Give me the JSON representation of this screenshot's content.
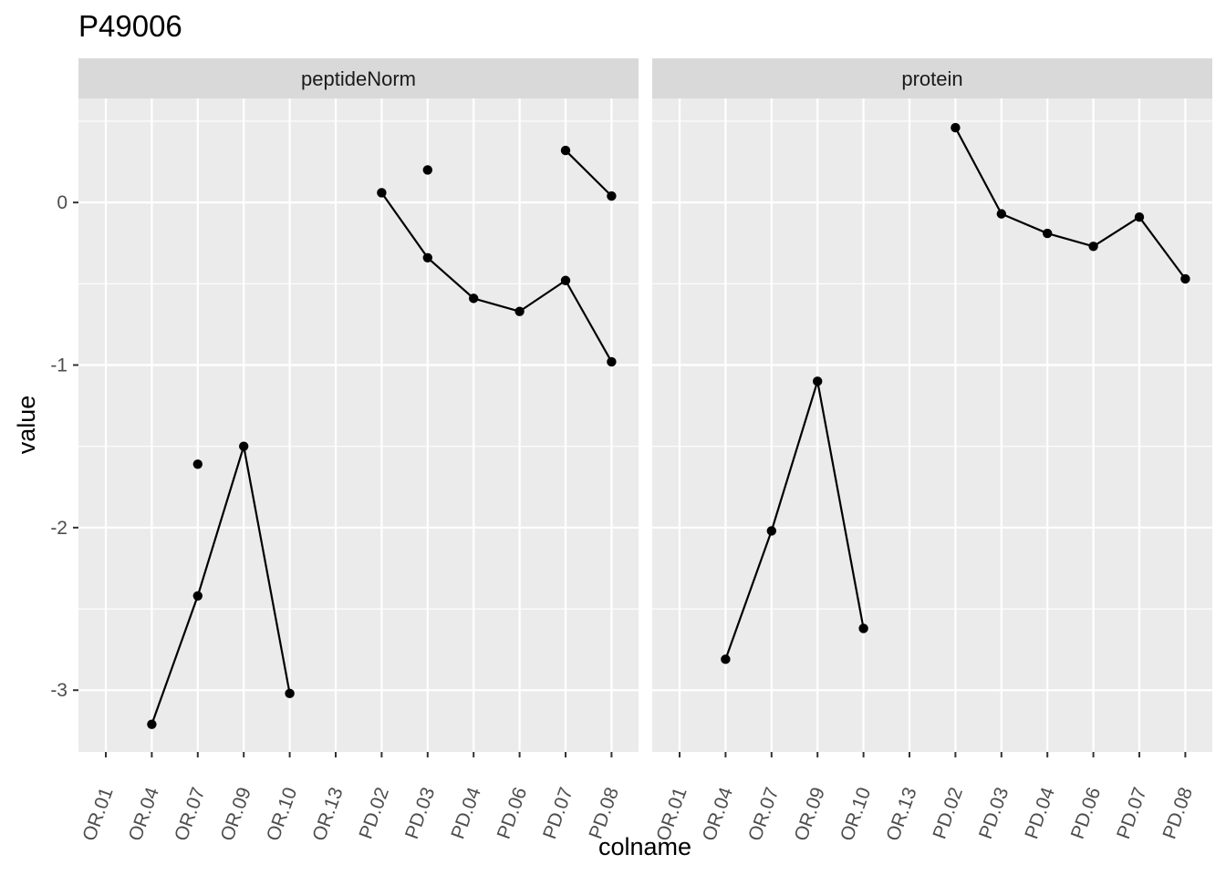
{
  "chart_data": {
    "type": "line",
    "title": "P49006",
    "xlabel": "colname",
    "ylabel": "value",
    "ylim": [
      -3.38,
      0.64
    ],
    "yticks": [
      0,
      -1,
      -2,
      -3
    ],
    "ytick_labels": [
      "0",
      "-1",
      "-2",
      "-3"
    ],
    "grid": true,
    "categories": [
      "OR.01",
      "OR.04",
      "OR.07",
      "OR.09",
      "OR.10",
      "OR.13",
      "PD.02",
      "PD.03",
      "PD.04",
      "PD.06",
      "PD.07",
      "PD.08"
    ],
    "colors": {
      "panel_bg": "#ebebeb",
      "strip_bg": "#d9d9d9",
      "grid": "#ffffff",
      "mark": "#000000",
      "tick": "#333333"
    },
    "facets": [
      {
        "label": "peptideNorm",
        "series": [
          {
            "values": [
              null,
              -3.21,
              -2.42,
              -1.5,
              -3.02,
              null,
              0.06,
              -0.34,
              -0.59,
              -0.67,
              -0.48,
              -0.98
            ]
          },
          {
            "values": [
              null,
              null,
              -1.61,
              null,
              null,
              null,
              null,
              0.2,
              null,
              null,
              0.32,
              0.04
            ]
          }
        ]
      },
      {
        "label": "protein",
        "series": [
          {
            "values": [
              null,
              -2.81,
              -2.02,
              -1.1,
              -2.62,
              null,
              0.46,
              -0.07,
              -0.19,
              -0.27,
              -0.09,
              -0.47
            ]
          }
        ]
      }
    ]
  }
}
